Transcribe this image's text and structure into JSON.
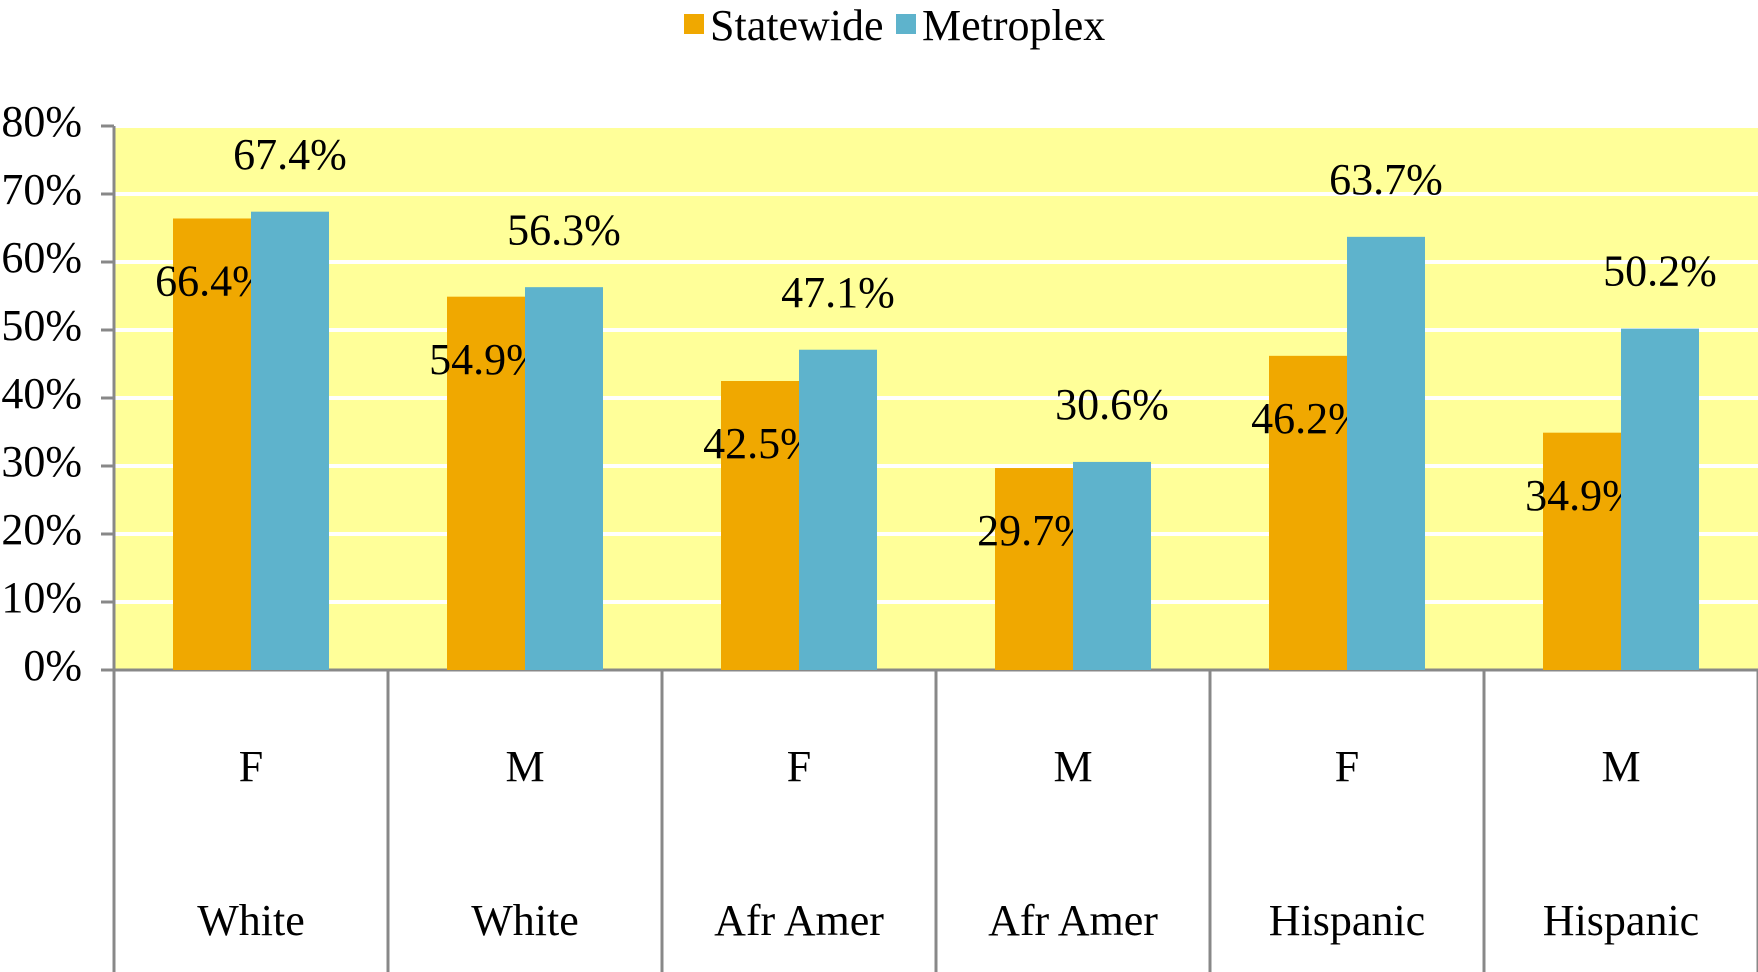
{
  "chart_data": {
    "type": "bar",
    "categories": [
      [
        "F",
        "White"
      ],
      [
        "M",
        "White"
      ],
      [
        "F",
        "Afr Amer"
      ],
      [
        "M",
        "Afr Amer"
      ],
      [
        "F",
        "Hispanic"
      ],
      [
        "M",
        "Hispanic"
      ]
    ],
    "series": [
      {
        "name": "Statewide",
        "color": "#f0a800",
        "values": [
          66.4,
          54.9,
          42.5,
          29.7,
          46.2,
          34.9
        ],
        "value_labels": [
          "66.4%",
          "54.9%",
          "42.5%",
          "29.7%",
          "46.2%",
          "34.9%"
        ]
      },
      {
        "name": "Metroplex",
        "color": "#5eb3cc",
        "values": [
          67.4,
          56.3,
          47.1,
          30.6,
          63.7,
          50.2
        ],
        "value_labels": [
          "67.4%",
          "56.3%",
          "47.1%",
          "30.6%",
          "63.7%",
          "50.2%"
        ]
      }
    ],
    "ylim": [
      0,
      80
    ],
    "yticks": [
      {
        "value": 0,
        "label": "0%"
      },
      {
        "value": 10,
        "label": "10%"
      },
      {
        "value": 20,
        "label": "20%"
      },
      {
        "value": 30,
        "label": "30%"
      },
      {
        "value": 40,
        "label": "40%"
      },
      {
        "value": 50,
        "label": "50%"
      },
      {
        "value": 60,
        "label": "60%"
      },
      {
        "value": 70,
        "label": "70%"
      },
      {
        "value": 80,
        "label": "80%"
      }
    ],
    "grid": true,
    "legend": "top",
    "background": "#ffff99"
  }
}
